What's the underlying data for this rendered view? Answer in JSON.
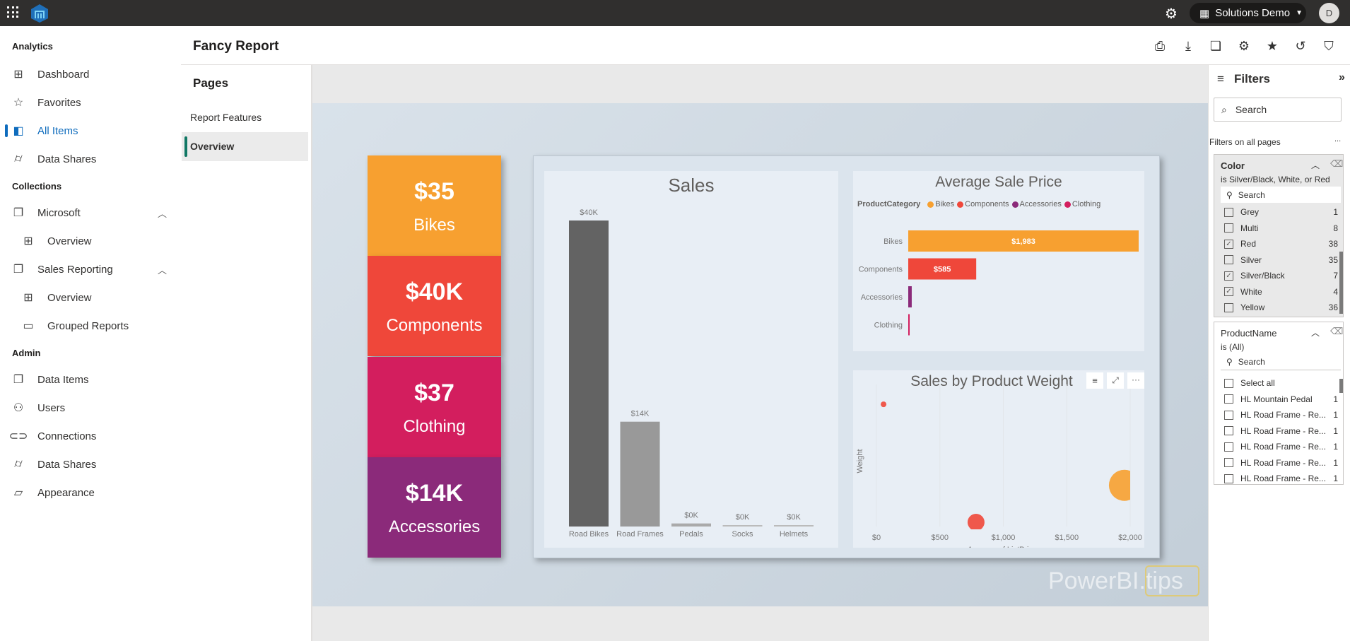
{
  "topbar": {
    "tenant": "Solutions Demo",
    "avatar": "D",
    "icons": [
      "waffle-icon",
      "app-logo",
      "settings-icon",
      "building-icon",
      "caret-down-icon"
    ]
  },
  "sidebar": {
    "sections": [
      {
        "label": "Analytics",
        "items": [
          {
            "label": "Dashboard",
            "icon": "dashboard-icon",
            "glyph": "⊞"
          },
          {
            "label": "Favorites",
            "icon": "star-icon",
            "glyph": "☆"
          },
          {
            "label": "All Items",
            "icon": "cubes-icon",
            "glyph": "◧",
            "active": true
          },
          {
            "label": "Data Shares",
            "icon": "database-icon",
            "glyph": "⌭"
          }
        ]
      },
      {
        "label": "Collections",
        "items": [
          {
            "label": "Microsoft",
            "icon": "collection-icon",
            "glyph": "❐",
            "expandable": true
          },
          {
            "label": "Overview",
            "icon": "dashboard-icon",
            "glyph": "⊞",
            "sub": true
          },
          {
            "label": "Sales Reporting",
            "icon": "collection-icon",
            "glyph": "❐",
            "expandable": true
          },
          {
            "label": "Overview",
            "icon": "dashboard-icon",
            "glyph": "⊞",
            "sub": true
          },
          {
            "label": "Grouped Reports",
            "icon": "folder-icon",
            "glyph": "▭",
            "sub": true
          }
        ]
      },
      {
        "label": "Admin",
        "items": [
          {
            "label": "Data Items",
            "icon": "collection-icon",
            "glyph": "❐"
          },
          {
            "label": "Users",
            "icon": "users-icon",
            "glyph": "⚇"
          },
          {
            "label": "Connections",
            "icon": "link-icon",
            "glyph": "⊂⊃"
          },
          {
            "label": "Data Shares",
            "icon": "database-icon",
            "glyph": "⌭"
          },
          {
            "label": "Appearance",
            "icon": "appearance-icon",
            "glyph": "▱"
          }
        ]
      }
    ]
  },
  "header": {
    "title": "Fancy Report",
    "toolbar": [
      {
        "name": "print-icon",
        "glyph": "⎙"
      },
      {
        "name": "download-icon",
        "glyph": "⤓"
      },
      {
        "name": "copy-icon",
        "glyph": "❏"
      },
      {
        "name": "settings-icon",
        "glyph": "⚙"
      },
      {
        "name": "favorite-star-icon",
        "glyph": "★"
      },
      {
        "name": "reset-icon",
        "glyph": "↺"
      },
      {
        "name": "bookmark-icon",
        "glyph": "⛉"
      }
    ]
  },
  "pages": {
    "title": "Pages",
    "items": [
      {
        "label": "Report Features"
      },
      {
        "label": "Overview",
        "selected": true
      }
    ]
  },
  "kpis": [
    {
      "value": "$35",
      "label": "Bikes",
      "color": "#F7A030"
    },
    {
      "value": "$40K",
      "label": "Components",
      "color": "#EF473A"
    },
    {
      "value": "$37",
      "label": "Clothing",
      "color": "#D31E5E"
    },
    {
      "value": "$14K",
      "label": "Accessories",
      "color": "#8B2A7A"
    }
  ],
  "watermark": "PowerBI.tips",
  "chart_data": [
    {
      "type": "bar",
      "title": "Sales",
      "categories": [
        "Road Bikes",
        "Road Frames",
        "Pedals",
        "Socks",
        "Helmets"
      ],
      "values": [
        40,
        13.7,
        0.4,
        0.1,
        0.1
      ],
      "labels": [
        "$40K",
        "$14K",
        "$0K",
        "$0K",
        "$0K"
      ],
      "colors": [
        "#636363",
        "#999999",
        "#aaaaaa",
        "#bbbbbb",
        "#bbbbbb"
      ],
      "ylim": [
        0,
        40
      ],
      "unit": "$K",
      "grid": false
    },
    {
      "type": "bar",
      "orientation": "horizontal",
      "title": "Average Sale Price",
      "legend_title": "ProductCategory",
      "legend": [
        {
          "name": "Bikes",
          "color": "#F7A030"
        },
        {
          "name": "Components",
          "color": "#EF473A"
        },
        {
          "name": "Accessories",
          "color": "#8B2A7A"
        },
        {
          "name": "Clothing",
          "color": "#D31E5E"
        }
      ],
      "categories": [
        "Bikes",
        "Components",
        "Accessories",
        "Clothing"
      ],
      "values": [
        1983,
        585,
        30,
        8
      ],
      "labels": [
        "$1,983",
        "$585",
        "",
        ""
      ],
      "colors": [
        "#F7A030",
        "#EF473A",
        "#8B2A7A",
        "#D31E5E"
      ],
      "xlim": [
        0,
        1983
      ]
    },
    {
      "type": "scatter",
      "title": "Sales by Product Weight",
      "xlabel": "Average of ListPrice",
      "ylabel": "Weight",
      "xticks": [
        "$0",
        "$500",
        "$1,000",
        "$1,500",
        "$2,000"
      ],
      "xlim": [
        0,
        2000
      ],
      "ylim": [
        0,
        1
      ],
      "points": [
        {
          "x": 56,
          "y": 0.86,
          "color": "#EF473A",
          "size": 1
        },
        {
          "x": 785,
          "y": 0.03,
          "color": "#EF473A",
          "size": 3
        },
        {
          "x": 1955,
          "y": 0.29,
          "color": "#F7A030",
          "size": 5.5
        }
      ],
      "grid": true,
      "header_icons": [
        "filter-icon",
        "focus-mode-icon",
        "more-options-icon"
      ]
    }
  ],
  "filters": {
    "title": "Filters",
    "search_placeholder": "Search",
    "section": "Filters on all pages",
    "more": "...",
    "cards": [
      {
        "name": "Color",
        "state": "is Silver/Black, White, or Red",
        "search": "Search",
        "items": [
          {
            "label": "Grey",
            "count": "1",
            "checked": false
          },
          {
            "label": "Multi",
            "count": "8",
            "checked": false
          },
          {
            "label": "Red",
            "count": "38",
            "checked": true
          },
          {
            "label": "Silver",
            "count": "35",
            "checked": false
          },
          {
            "label": "Silver/Black",
            "count": "7",
            "checked": true
          },
          {
            "label": "White",
            "count": "4",
            "checked": true
          },
          {
            "label": "Yellow",
            "count": "36",
            "checked": false
          }
        ]
      },
      {
        "name": "ProductName",
        "state": "is (All)",
        "search": "Search",
        "items": [
          {
            "label": "Select all",
            "count": "",
            "checked": false
          },
          {
            "label": "HL Mountain Pedal",
            "count": "1",
            "checked": false
          },
          {
            "label": "HL Road Frame - Re...",
            "count": "1",
            "checked": false
          },
          {
            "label": "HL Road Frame - Re...",
            "count": "1",
            "checked": false
          },
          {
            "label": "HL Road Frame - Re...",
            "count": "1",
            "checked": false
          },
          {
            "label": "HL Road Frame - Re...",
            "count": "1",
            "checked": false
          },
          {
            "label": "HL Road Frame - Re...",
            "count": "1",
            "checked": false
          }
        ]
      }
    ]
  }
}
